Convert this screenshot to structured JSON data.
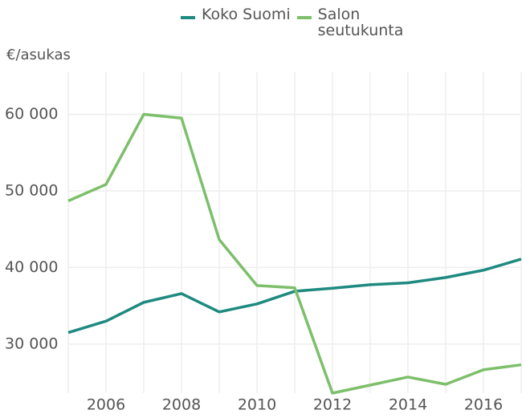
{
  "chart_data": {
    "type": "line",
    "y_label": "€/asukas",
    "x": [
      2005,
      2006,
      2007,
      2008,
      2009,
      2010,
      2011,
      2012,
      2013,
      2014,
      2015,
      2016,
      2017
    ],
    "series": [
      {
        "name": "Koko Suomi",
        "color": "#1f8a80",
        "values": [
          31500,
          33000,
          35450,
          36600,
          34200,
          35250,
          36900,
          37300,
          37750,
          38000,
          38700,
          39650,
          41100
        ]
      },
      {
        "name": "Salon seutukunta",
        "color": "#7dbf6a",
        "values": [
          48700,
          50850,
          60000,
          59500,
          43650,
          37650,
          37350,
          23600,
          24650,
          25700,
          24750,
          26650,
          27300
        ]
      }
    ],
    "xlim": [
      2005,
      2017
    ],
    "xticks": [
      2006,
      2008,
      2010,
      2012,
      2014,
      2016
    ],
    "ylim": [
      23600,
      65500
    ],
    "yticks": [
      {
        "value": 30000,
        "label": "30 000"
      },
      {
        "value": 40000,
        "label": "40 000"
      },
      {
        "value": 50000,
        "label": "50 000"
      },
      {
        "value": 60000,
        "label": "60 000"
      }
    ],
    "grid": true
  }
}
